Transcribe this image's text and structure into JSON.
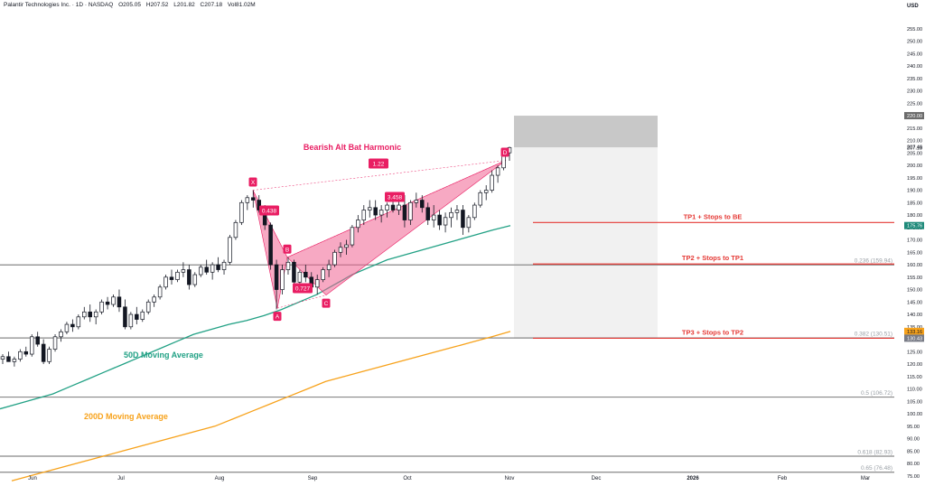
{
  "header": {
    "symbol": "Palantir Technologies Inc. · 1D · NASDAQ",
    "open": "O205.05",
    "high": "H207.52",
    "low": "L201.82",
    "close": "C207.18",
    "volume": "Vol81.02M"
  },
  "currency": "USD",
  "chart_data": {
    "type": "candlestick",
    "y_axis_ticks": [
      75,
      80,
      85,
      90,
      95,
      100,
      105,
      110,
      115,
      120,
      125,
      130,
      135,
      140,
      145,
      150,
      155,
      160,
      165,
      170,
      175,
      180,
      185,
      190,
      195,
      200,
      205,
      210,
      215,
      225,
      230,
      235,
      240,
      245,
      250,
      255
    ],
    "x_axis_labels": [
      "Jun",
      "Jul",
      "Aug",
      "Sep",
      "Oct",
      "Nov",
      "Dec",
      "2026",
      "Feb",
      "Mar"
    ],
    "price_tags": [
      {
        "label": "220.00",
        "value": 220,
        "color": "#6b6b6b"
      },
      {
        "label": "207.46",
        "value": 207.46,
        "color": "none"
      },
      {
        "label": "207.18",
        "value": 207.18,
        "color": "none"
      },
      {
        "label": "175.76",
        "value": 175.76,
        "color": "#1e8a7a"
      },
      {
        "label": "133.16",
        "value": 133.16,
        "color": "#f7a21b"
      },
      {
        "label": "130.43",
        "value": 130.43,
        "color": "#787b86"
      }
    ],
    "fib_levels": [
      {
        "label": "0.236 (159.94)",
        "value": 159.94
      },
      {
        "label": "0.382 (130.51)",
        "value": 130.51
      },
      {
        "label": "0.5 (106.72)",
        "value": 106.72
      },
      {
        "label": "0.618 (82.93)",
        "value": 82.93
      },
      {
        "label": "0.65 (76.48)",
        "value": 76.48
      }
    ],
    "targets": [
      {
        "label": "TP1 + Stops to BE",
        "value": 177.0
      },
      {
        "label": "TP2 + Stops to TP1",
        "value": 160.3
      },
      {
        "label": "TP3 + Stops to TP2",
        "value": 130.4
      }
    ],
    "pattern": {
      "title": "Bearish Alt Bat Harmonic",
      "points": [
        {
          "label": "X",
          "value": 190.0
        },
        {
          "label": "A",
          "value": 142.5
        },
        {
          "label": "B",
          "value": 163.0
        },
        {
          "label": "C",
          "value": 147.8
        },
        {
          "label": "D",
          "value": 202.0
        }
      ],
      "ratios": [
        "0.438",
        "0.727",
        "3.458",
        "1.22"
      ]
    },
    "ma_labels": {
      "ma50": "50D Moving Average",
      "ma200": "200D Moving Average"
    },
    "ma50": [
      102,
      104,
      106,
      108,
      111,
      114,
      117,
      120,
      123,
      126,
      129,
      132,
      134,
      136,
      137.5,
      139.5,
      142,
      145,
      148,
      152,
      156,
      159,
      162,
      164,
      166,
      168,
      170,
      172,
      174,
      175.76
    ],
    "ma200": [
      73,
      75,
      77,
      79,
      81,
      83,
      85,
      87,
      89,
      91,
      93,
      95,
      98,
      101,
      104,
      107,
      110,
      113,
      115,
      117,
      119,
      121,
      123,
      125,
      127,
      129,
      131,
      133.16
    ],
    "candles": [
      [
        122,
        124,
        120,
        123
      ],
      [
        123,
        125,
        121,
        121
      ],
      [
        121,
        123,
        119,
        122
      ],
      [
        122,
        126,
        121,
        125
      ],
      [
        125,
        127,
        123,
        124
      ],
      [
        124,
        132,
        123,
        131
      ],
      [
        131,
        133,
        127,
        128
      ],
      [
        128,
        130,
        120,
        121
      ],
      [
        121,
        127,
        120,
        126
      ],
      [
        126,
        132,
        125,
        131
      ],
      [
        131,
        134,
        129,
        133
      ],
      [
        133,
        137,
        132,
        136
      ],
      [
        136,
        138,
        133,
        135
      ],
      [
        135,
        140,
        134,
        139
      ],
      [
        139,
        143,
        138,
        141
      ],
      [
        141,
        144,
        137,
        139
      ],
      [
        139,
        142,
        136,
        141
      ],
      [
        141,
        146,
        140,
        145
      ],
      [
        145,
        147,
        142,
        144
      ],
      [
        144,
        148,
        143,
        147
      ],
      [
        147,
        150,
        141,
        143
      ],
      [
        143,
        146,
        134,
        135
      ],
      [
        135,
        141,
        134,
        140
      ],
      [
        140,
        143,
        136,
        138
      ],
      [
        138,
        142,
        137,
        141
      ],
      [
        141,
        146,
        140,
        145
      ],
      [
        145,
        148,
        143,
        147
      ],
      [
        147,
        152,
        146,
        151
      ],
      [
        151,
        156,
        150,
        155
      ],
      [
        155,
        158,
        152,
        154
      ],
      [
        154,
        158,
        153,
        157
      ],
      [
        157,
        161,
        155,
        158
      ],
      [
        158,
        160,
        150,
        152
      ],
      [
        152,
        157,
        151,
        156
      ],
      [
        156,
        160,
        155,
        159
      ],
      [
        159,
        162,
        156,
        157
      ],
      [
        157,
        161,
        154,
        160
      ],
      [
        160,
        163,
        157,
        158
      ],
      [
        158,
        162,
        156,
        161
      ],
      [
        161,
        172,
        160,
        171
      ],
      [
        171,
        178,
        170,
        177
      ],
      [
        177,
        186,
        176,
        185
      ],
      [
        185,
        188,
        182,
        187
      ],
      [
        187,
        190,
        183,
        186
      ],
      [
        186,
        188,
        181,
        182
      ],
      [
        182,
        184,
        174,
        176
      ],
      [
        176,
        177,
        158,
        160
      ],
      [
        160,
        162,
        142,
        150
      ],
      [
        150,
        160,
        148,
        158
      ],
      [
        158,
        163,
        156,
        161
      ],
      [
        161,
        162,
        152,
        153
      ],
      [
        153,
        158,
        151,
        157
      ],
      [
        157,
        160,
        153,
        155
      ],
      [
        155,
        157,
        150,
        151
      ],
      [
        151,
        156,
        148,
        154
      ],
      [
        154,
        159,
        153,
        158
      ],
      [
        158,
        162,
        155,
        160
      ],
      [
        160,
        166,
        159,
        165
      ],
      [
        165,
        169,
        163,
        167
      ],
      [
        167,
        170,
        164,
        168
      ],
      [
        168,
        176,
        167,
        175
      ],
      [
        175,
        180,
        173,
        178
      ],
      [
        178,
        184,
        176,
        182
      ],
      [
        182,
        186,
        179,
        183
      ],
      [
        183,
        186,
        178,
        180
      ],
      [
        180,
        184,
        177,
        182
      ],
      [
        182,
        185,
        179,
        184
      ],
      [
        184,
        187,
        181,
        182
      ],
      [
        182,
        186,
        180,
        184
      ],
      [
        184,
        188,
        175,
        178
      ],
      [
        178,
        186,
        176,
        185
      ],
      [
        185,
        189,
        183,
        186
      ],
      [
        186,
        188,
        181,
        183
      ],
      [
        183,
        185,
        176,
        178
      ],
      [
        178,
        184,
        175,
        180
      ],
      [
        180,
        182,
        174,
        176
      ],
      [
        176,
        181,
        173,
        179
      ],
      [
        179,
        183,
        175,
        181
      ],
      [
        181,
        184,
        178,
        182
      ],
      [
        182,
        184,
        172,
        175
      ],
      [
        175,
        180,
        173,
        179
      ],
      [
        179,
        185,
        178,
        184
      ],
      [
        184,
        190,
        183,
        189
      ],
      [
        189,
        192,
        186,
        190
      ],
      [
        190,
        198,
        189,
        196
      ],
      [
        196,
        200,
        193,
        199
      ],
      [
        199,
        206,
        198,
        205
      ],
      [
        205.05,
        207.52,
        201.82,
        207.18
      ]
    ]
  }
}
